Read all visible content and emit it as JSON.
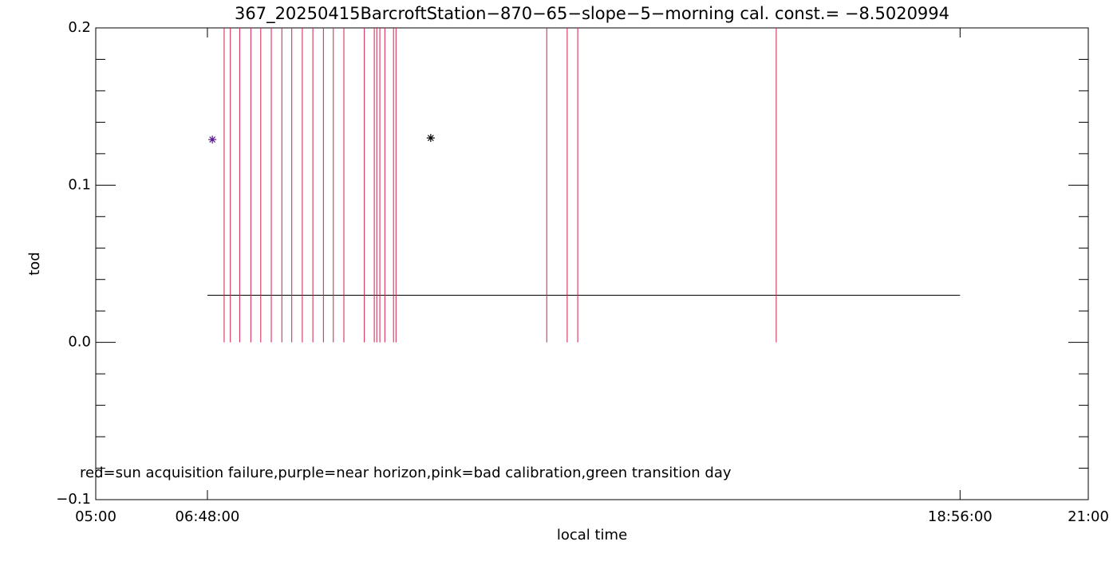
{
  "chart_data": {
    "type": "scatter",
    "title": "367_20250415BarcroftStation−870−65−slope−5−morning cal. const.= −8.5020994",
    "x_label": "local time",
    "y_label": "tod",
    "annotation": "red=sun acquisition failure,purple=near horizon,pink=bad calibration,green transition day",
    "xlim": [
      5,
      21
    ],
    "ylim": [
      -0.1,
      0.2
    ],
    "xticks": [
      {
        "value": 5,
        "label": "05:00"
      },
      {
        "value": 6.8,
        "label": "06:48:00"
      },
      {
        "value": 18.9333,
        "label": "18:56:00"
      },
      {
        "value": 21,
        "label": "21:00"
      }
    ],
    "yticks": [
      {
        "value": -0.1,
        "label": "−0.1"
      },
      {
        "value": 0,
        "label": "0.0"
      },
      0.1,
      0.2
    ],
    "y_minor_divisions": 5,
    "series": [
      {
        "x": [
          6.88,
          10.4
        ],
        "values": [
          0.129,
          0.13
        ],
        "colors": [
          "#5a1a8c",
          "#000000"
        ]
      }
    ],
    "flag_lines": {
      "color": "#d21f4b",
      "y_low": 0,
      "y_high": 0.2,
      "x": [
        7.07,
        7.17,
        7.32,
        7.5,
        7.66,
        7.83,
        8.0,
        8.16,
        8.33,
        8.5,
        8.67,
        8.83,
        9.0,
        9.33,
        9.49,
        9.53,
        9.58,
        9.66,
        9.8,
        9.84,
        12.27,
        12.6,
        12.77,
        15.97
      ]
    },
    "reference_line": {
      "y": 0.03,
      "x": [
        6.8,
        18.9333
      ],
      "color": "#000000"
    }
  }
}
